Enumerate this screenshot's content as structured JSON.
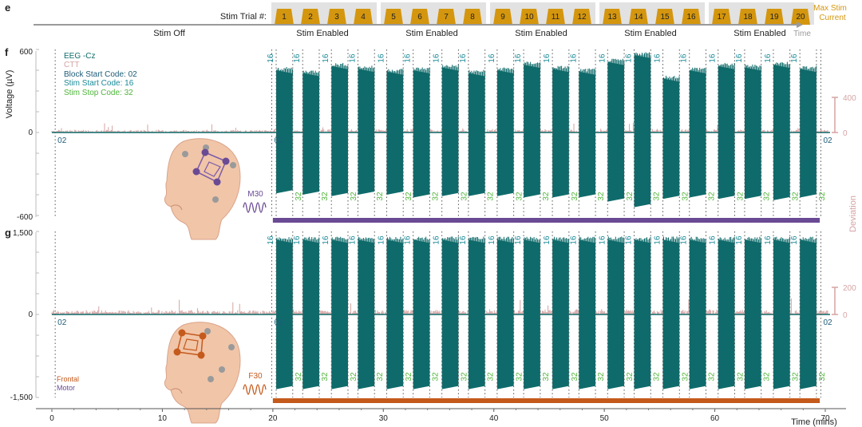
{
  "colors": {
    "eeg": "#0f6b6b",
    "ctt": "#d6a3a3",
    "block_code": "#1d5c78",
    "start_code": "#1a8a99",
    "stop_code": "#4fb53a",
    "stim": "#d4960e",
    "motor": "#6a4a94",
    "frontal": "#c45a1c",
    "time_arrow": "#9a9a9a",
    "grid": "#555555"
  },
  "panel_e": {
    "letter": "e",
    "trial_label": "Stim Trial #:",
    "trials": [
      "1",
      "2",
      "3",
      "4",
      "5",
      "6",
      "7",
      "8",
      "9",
      "10",
      "11",
      "12",
      "13",
      "14",
      "15",
      "16",
      "17",
      "18",
      "19",
      "20"
    ],
    "stim_off_label": "Stim Off",
    "stim_enabled_label": "Stim Enabled",
    "time_label": "Time",
    "max_stim_label": [
      "Max Stim",
      "Current"
    ]
  },
  "chart_data": [
    {
      "type": "line",
      "panel": "f",
      "ylabel": "Voltage (µV)",
      "ylim": [
        -600,
        600
      ],
      "yticks": [
        "600",
        "0",
        "-600"
      ],
      "secondary_ylabel": "Deviation",
      "secondary_yticks": [
        "400",
        "0"
      ],
      "secondary_ylim": [
        0,
        400
      ],
      "xlim": [
        0,
        70
      ],
      "legend": {
        "placement": "top-left",
        "entries": [
          "EEG -Cz",
          "CTT",
          "Block Start Code: 02",
          "Stim Start Code: 16",
          "Stim Stop Code: 32"
        ]
      },
      "block_start_code": "02",
      "stim_start_code": "16",
      "stim_stop_code": "32",
      "block_start_times": [
        0.3,
        19.9,
        69.6
      ],
      "stim_start_times": [
        20.3,
        22.7,
        25.3,
        27.7,
        30.3,
        32.7,
        35.3,
        37.7,
        40.3,
        42.7,
        45.3,
        47.7,
        50.3,
        52.7,
        55.3,
        57.7,
        60.3,
        62.7,
        65.3,
        67.7
      ],
      "stim_stop_times": [
        21.8,
        24.2,
        26.8,
        29.2,
        31.8,
        34.2,
        36.8,
        39.2,
        41.8,
        44.2,
        46.8,
        49.2,
        51.8,
        54.2,
        56.8,
        59.2,
        61.8,
        64.2,
        66.8,
        69.2
      ],
      "burst_peak_uv": [
        450,
        430,
        480,
        460,
        440,
        450,
        470,
        430,
        450,
        490,
        460,
        440,
        510,
        560,
        390,
        450,
        480,
        470,
        490,
        460
      ],
      "burst_trough_uv": [
        -440,
        -450,
        -460,
        -450,
        -450,
        -470,
        -460,
        -460,
        -460,
        -470,
        -470,
        -470,
        -500,
        -540,
        -480,
        -470,
        -480,
        -480,
        -490,
        -470
      ],
      "montage_label": "M30",
      "stim_bar": {
        "start": 20,
        "end": 69.5
      }
    },
    {
      "type": "line",
      "panel": "g",
      "ylim": [
        -1500,
        1500
      ],
      "yticks": [
        "1,500",
        "0",
        "-1,500"
      ],
      "secondary_yticks": [
        "200",
        "0"
      ],
      "secondary_ylim": [
        0,
        200
      ],
      "xlim": [
        0,
        70
      ],
      "xlabel": "Time (mins)",
      "xticks": [
        0,
        10,
        20,
        30,
        40,
        50,
        60,
        70
      ],
      "block_start_code": "02",
      "stim_start_code": "16",
      "stim_stop_code": "32",
      "block_start_times": [
        0.3,
        19.9,
        69.6
      ],
      "stim_start_times": [
        20.3,
        22.7,
        25.3,
        27.7,
        30.3,
        32.7,
        35.3,
        37.7,
        40.3,
        42.7,
        45.3,
        47.7,
        50.3,
        52.7,
        55.3,
        57.7,
        60.3,
        62.7,
        65.3,
        67.7
      ],
      "stim_stop_times": [
        21.8,
        24.2,
        26.8,
        29.2,
        31.8,
        34.2,
        36.8,
        39.2,
        41.8,
        44.2,
        46.8,
        49.2,
        51.8,
        54.2,
        56.8,
        59.2,
        61.8,
        64.2,
        66.8,
        69.2
      ],
      "burst_peak_uv": [
        1350,
        1350,
        1350,
        1350,
        1350,
        1350,
        1350,
        1350,
        1350,
        1350,
        1350,
        1350,
        1350,
        1350,
        1350,
        1350,
        1350,
        1350,
        1350,
        1350
      ],
      "burst_trough_uv": [
        -1350,
        -1350,
        -1350,
        -1350,
        -1350,
        -1350,
        -1350,
        -1350,
        -1350,
        -1350,
        -1350,
        -1350,
        -1350,
        -1350,
        -1350,
        -1350,
        -1350,
        -1350,
        -1350,
        -1350
      ],
      "montage_label": "F30",
      "legend2": {
        "entries": [
          "Frontal",
          "Motor"
        ]
      },
      "stim_bar": {
        "start": 20,
        "end": 69.5
      }
    }
  ]
}
